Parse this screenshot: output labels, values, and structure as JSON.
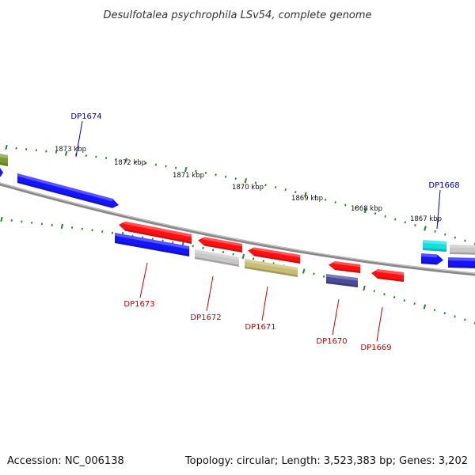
{
  "title": "Desulfotalea psychrophila LSv54, complete genome",
  "footer": {
    "accession": "Accession: NC_006138",
    "summary": "Topology: circular; Length: 3,523,383 bp; Genes: 3,202"
  },
  "colors": {
    "backbone": "#8a8a8a",
    "tick": "#1f8a1f",
    "label_forward": "#0000c0",
    "label_reverse": "#cc0000",
    "red": "#ff1010",
    "blue": "#1414ff",
    "gray": "#c8c8c8",
    "khaki": "#c8bd72",
    "navy": "#4a4a9a",
    "cyan": "#12e0e0",
    "olive": "#7a9a30"
  },
  "kbp_labels": [
    "1873 kbp",
    "1872 kbp",
    "1871 kbp",
    "1870 kbp",
    "1869 kbp",
    "1868 kbp",
    "1867 kbp"
  ],
  "gene_labels": {
    "forward": [
      "DP1674",
      "DP1668"
    ],
    "reverse": [
      "DP1673",
      "DP1672",
      "DP1671",
      "DP1670",
      "DP1669"
    ]
  },
  "genes": [
    {
      "color": "olive",
      "strand": "forward"
    },
    {
      "color": "blue",
      "strand": "forward"
    },
    {
      "color": "cyan",
      "strand": "forward"
    },
    {
      "color": "gray",
      "strand": "forward"
    },
    {
      "color": "red",
      "strand": "reverse"
    },
    {
      "color": "blue",
      "strand": "reverse"
    },
    {
      "color": "red",
      "strand": "reverse"
    },
    {
      "color": "gray",
      "strand": "reverse"
    },
    {
      "color": "red",
      "strand": "reverse"
    },
    {
      "color": "khaki",
      "strand": "reverse"
    },
    {
      "color": "red",
      "strand": "reverse"
    },
    {
      "color": "navy",
      "strand": "reverse"
    },
    {
      "color": "red",
      "strand": "reverse"
    },
    {
      "color": "blue",
      "strand": "reverse"
    },
    {
      "color": "blue",
      "strand": "reverse"
    }
  ]
}
